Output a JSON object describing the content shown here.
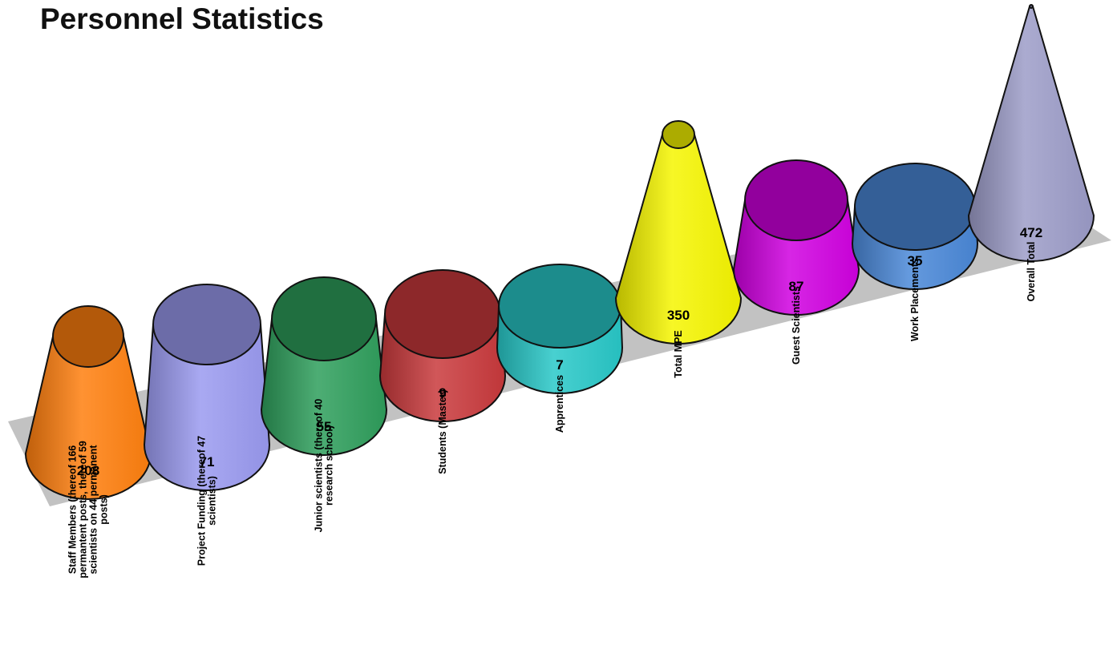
{
  "chart_data": {
    "type": "bar",
    "style": "3d-cones",
    "title": "Personnel Statistics",
    "xlabel": "",
    "ylabel": "",
    "grid": false,
    "legend": "none",
    "categories": [
      "Staff Members (thereof 166 permantent posts, thereof 59 scientists on 44 permanent posts)",
      "Project Funding (thereof 47 scientists)",
      "Junior scientists (thereof 40 research school)",
      "Students (Master)",
      "Apprentices",
      "Total MPE",
      "Guest Scientists",
      "Work Placements",
      "Overall Total"
    ],
    "values": [
      208,
      71,
      55,
      9,
      7,
      350,
      87,
      35,
      472
    ],
    "value_labels": [
      "208",
      "71",
      "55",
      "9",
      "7",
      "350",
      "87",
      "35",
      "472"
    ],
    "colors": [
      "#ff7f0e",
      "#9a9af0",
      "#2e9e5c",
      "#c9393c",
      "#28c8c8",
      "#f5f500",
      "#d000e0",
      "#4a88d8",
      "#9c9cc8"
    ]
  }
}
